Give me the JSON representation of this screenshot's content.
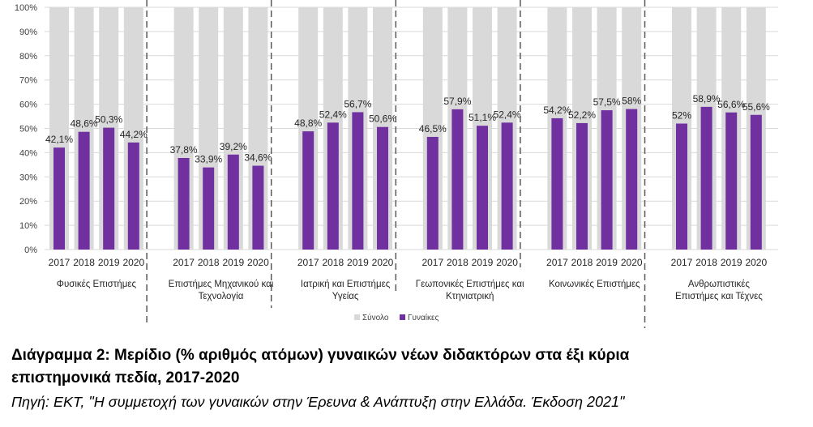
{
  "chart_data": {
    "type": "bar",
    "title": "Διάγραμμα 2: Μερίδιο (% αριθμός ατόμων) γυναικών νέων διδακτόρων στα έξι κύρια",
    "title_line2": "επιστημονικά πεδία, 2017-2020",
    "source": "Πηγή: ΕΚΤ, \"Η συμμετοχή των γυναικών στην Έρευνα & Ανάπτυξη στην Ελλάδα. Έκδοση 2021\"",
    "ylim": [
      0,
      100
    ],
    "yticks": [
      "0%",
      "10%",
      "20%",
      "30%",
      "40%",
      "50%",
      "60%",
      "70%",
      "80%",
      "90%",
      "100%"
    ],
    "years": [
      "2017",
      "2018",
      "2019",
      "2020"
    ],
    "groups": [
      {
        "name": [
          "Φυσικές Επιστήμες"
        ],
        "values": [
          42.1,
          48.6,
          50.3,
          44.2
        ],
        "labels": [
          "42,1%",
          "48,6%",
          "50,3%",
          "44,2%"
        ]
      },
      {
        "name": [
          "Επιστήμες Μηχανικού και",
          "Τεχνολογία"
        ],
        "values": [
          37.8,
          33.9,
          39.2,
          34.6
        ],
        "labels": [
          "37,8%",
          "33,9%",
          "39,2%",
          "34,6%"
        ]
      },
      {
        "name": [
          "Ιατρική και Επιστήμες",
          "Υγείας"
        ],
        "values": [
          48.8,
          52.4,
          56.7,
          50.6
        ],
        "labels": [
          "48,8%",
          "52,4%",
          "56,7%",
          "50,6%"
        ]
      },
      {
        "name": [
          "Γεωπονικές Επιστήμες και",
          "Κτηνιατρική"
        ],
        "values": [
          46.5,
          57.9,
          51.1,
          52.4
        ],
        "labels": [
          "46,5%",
          "57,9%",
          "51,1%",
          "52,4%"
        ]
      },
      {
        "name": [
          "Κοινωνικές Επιστήμες"
        ],
        "values": [
          54.2,
          52.2,
          57.5,
          58
        ],
        "labels": [
          "54,2%",
          "52,2%",
          "57,5%",
          "58%"
        ]
      },
      {
        "name": [
          "Ανθρωπιστικές",
          "Επιστήμες και Τέχνες"
        ],
        "values": [
          52,
          58.9,
          56.6,
          55.6
        ],
        "labels": [
          "52%",
          "58,9%",
          "56,6%",
          "55,6%"
        ]
      }
    ],
    "series": [
      {
        "name": "Σύνολο",
        "color": "#d9d9d9",
        "value_all": 100
      },
      {
        "name": "Γυναίκες",
        "color": "#7030a0"
      }
    ],
    "grid": true,
    "legend": "bottom-center"
  }
}
